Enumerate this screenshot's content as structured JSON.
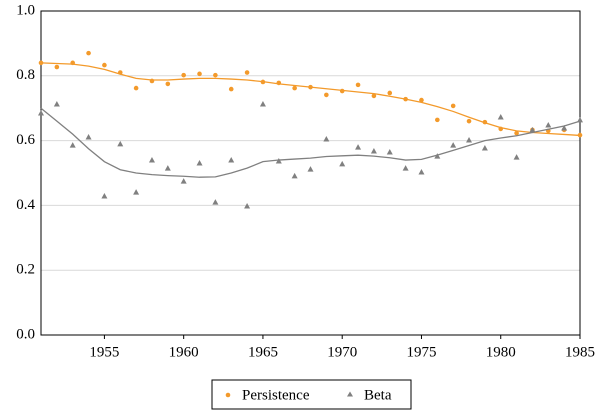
{
  "chart_data": {
    "type": "scatter",
    "x": [
      1951,
      1952,
      1953,
      1954,
      1955,
      1956,
      1957,
      1958,
      1959,
      1960,
      1961,
      1962,
      1963,
      1964,
      1965,
      1966,
      1967,
      1968,
      1969,
      1970,
      1971,
      1972,
      1973,
      1974,
      1975,
      1976,
      1977,
      1978,
      1979,
      1980,
      1981,
      1982,
      1983,
      1984,
      1985
    ],
    "series": [
      {
        "name": "Persistence",
        "color": "#f39a2b",
        "marker": "circle",
        "values": [
          0.84,
          0.827,
          0.84,
          0.87,
          0.833,
          0.81,
          0.762,
          0.784,
          0.775,
          0.802,
          0.806,
          0.802,
          0.759,
          0.81,
          0.781,
          0.778,
          0.762,
          0.765,
          0.741,
          0.753,
          0.772,
          0.738,
          0.747,
          0.728,
          0.725,
          0.664,
          0.707,
          0.66,
          0.657,
          0.636,
          0.623,
          0.633,
          0.63,
          0.633,
          0.617
        ],
        "smooth": [
          0.84,
          0.838,
          0.836,
          0.83,
          0.82,
          0.805,
          0.792,
          0.787,
          0.787,
          0.79,
          0.792,
          0.792,
          0.79,
          0.787,
          0.782,
          0.775,
          0.77,
          0.765,
          0.76,
          0.755,
          0.75,
          0.745,
          0.737,
          0.728,
          0.718,
          0.705,
          0.69,
          0.672,
          0.655,
          0.64,
          0.63,
          0.625,
          0.622,
          0.619,
          0.616
        ]
      },
      {
        "name": "Beta",
        "color": "#808080",
        "marker": "triangle",
        "values": [
          0.685,
          0.713,
          0.586,
          0.611,
          0.429,
          0.59,
          0.441,
          0.54,
          0.515,
          0.475,
          0.531,
          0.41,
          0.54,
          0.398,
          0.713,
          0.537,
          0.491,
          0.512,
          0.605,
          0.528,
          0.58,
          0.568,
          0.565,
          0.515,
          0.503,
          0.552,
          0.586,
          0.602,
          0.577,
          0.673,
          0.549,
          0.633,
          0.648,
          0.639,
          0.664
        ],
        "smooth": [
          0.7,
          0.66,
          0.62,
          0.575,
          0.535,
          0.51,
          0.5,
          0.495,
          0.492,
          0.49,
          0.487,
          0.488,
          0.5,
          0.515,
          0.535,
          0.54,
          0.543,
          0.546,
          0.551,
          0.553,
          0.555,
          0.552,
          0.547,
          0.54,
          0.542,
          0.555,
          0.57,
          0.585,
          0.6,
          0.608,
          0.615,
          0.625,
          0.635,
          0.645,
          0.66
        ]
      }
    ],
    "xlim": [
      1951,
      1985
    ],
    "xticks": [
      1955,
      1960,
      1965,
      1970,
      1975,
      1980,
      1985
    ],
    "ylim": [
      0,
      1
    ],
    "yticks": [
      {
        "value": 0,
        "label": "0.0"
      },
      0.2,
      0.4,
      0.6,
      0.8,
      {
        "value": 1,
        "label": "1.0"
      }
    ],
    "grid": true,
    "legend": "bottom"
  }
}
